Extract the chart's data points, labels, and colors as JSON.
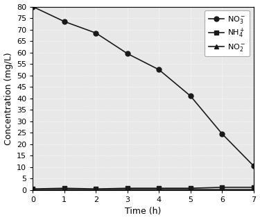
{
  "no3_x": [
    0,
    1,
    2,
    3,
    4,
    5,
    6,
    7
  ],
  "no3_y": [
    80,
    73.5,
    68.5,
    59.5,
    52.5,
    41,
    24.5,
    10.5
  ],
  "nh4_x": [
    0,
    1,
    2,
    3,
    4,
    5,
    6,
    7
  ],
  "nh4_y": [
    0.5,
    0.8,
    0.5,
    0.8,
    0.8,
    0.8,
    1.2,
    1.2
  ],
  "no2_x": [
    0,
    1,
    2,
    3,
    4,
    5,
    6,
    7
  ],
  "no2_y": [
    0.2,
    0.2,
    0.2,
    0.2,
    0.2,
    0.2,
    0.2,
    0.2
  ],
  "xlabel": "Time (h)",
  "ylabel": "Concentration (mg/L)",
  "xlim": [
    0,
    7
  ],
  "ylim": [
    0,
    80
  ],
  "yticks": [
    0,
    5,
    10,
    15,
    20,
    25,
    30,
    35,
    40,
    45,
    50,
    55,
    60,
    65,
    70,
    75,
    80
  ],
  "xticks": [
    0,
    1,
    2,
    3,
    4,
    5,
    6,
    7
  ],
  "line_color": "#1a1a1a",
  "legend_no3": "NO$_3^-$",
  "legend_nh4": "NH$_4^+$",
  "legend_no2": "NO$_2^-$",
  "bg_color": "#e8e8e8",
  "figure_width": 3.75,
  "figure_height": 3.17,
  "dpi": 100
}
